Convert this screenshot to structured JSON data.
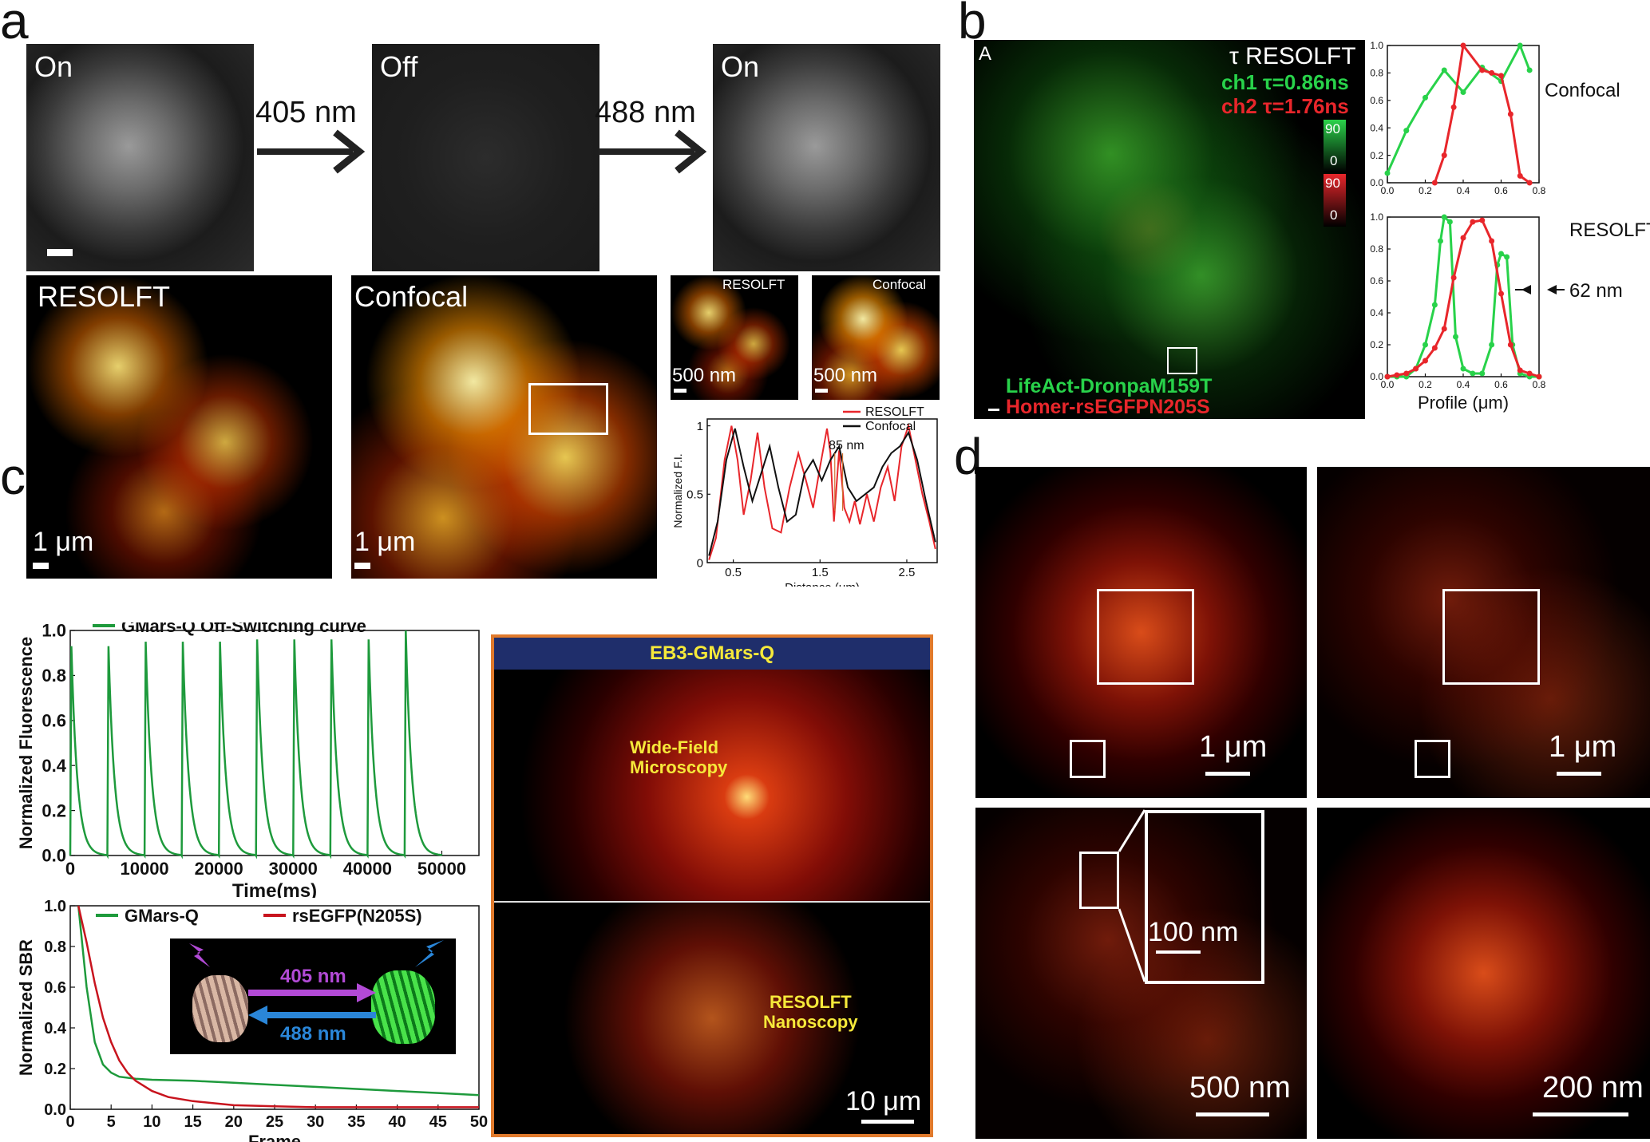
{
  "panel_letters": {
    "a": "a",
    "b": "b",
    "c": "c",
    "d": "d"
  },
  "panel_a": {
    "switching": {
      "on_label_1": "On",
      "off_label": "Off",
      "on_label_2": "On",
      "arrow_1_wavelength": "405 nm",
      "arrow_2_wavelength": "488 nm"
    },
    "resolft_image_label": "RESOLFT",
    "resolft_scale": "1 μm",
    "confocal_image_label": "Confocal",
    "confocal_scale": "1 μm",
    "zoom_resolft_label": "RESOLFT",
    "zoom_resolft_scale": "500 nm",
    "zoom_confocal_label": "Confocal",
    "zoom_confocal_scale": "500 nm"
  },
  "panel_b": {
    "corner_label": "A",
    "title": "τ RESOLFT",
    "ch1": "ch1 τ=0.86ns",
    "ch2": "ch2 τ=1.76ns",
    "green_scale_max": "90",
    "green_scale_min": "0",
    "red_scale_max": "90",
    "red_scale_min": "0",
    "marker_green": "LifeAct-DronpaM159T",
    "marker_red": "Homer-rsEGFPN205S"
  },
  "panel_c": {
    "image_title": "EB3-GMars-Q",
    "wide_field_label_1": "Wide-Field",
    "wide_field_label_2": "Microscopy",
    "resolft_label_1": "RESOLFT",
    "resolft_label_2": "Nanoscopy",
    "image_scale": "10 μm",
    "inset_arrow_1": "405 nm",
    "inset_arrow_2": "488 nm"
  },
  "panel_d": {
    "scale_1": "1 μm",
    "scale_2": "1 μm",
    "scale_3_inset": "100 nm",
    "scale_3": "500 nm",
    "scale_4": "200 nm"
  },
  "colors": {
    "resolft_red": "#e8262b",
    "confocal_black": "#111111",
    "green": "#28d24a",
    "red": "#e8262b",
    "gmars_green": "#1e9a3c",
    "rsegfp_red": "#c8141e",
    "c_title_bg": "#1f2e6b",
    "c_title_text": "#f6e93a",
    "c_frame": "#e07a2c",
    "purple_arrow": "#b24ad6",
    "blue_arrow": "#2a86d8"
  },
  "chart_data": [
    {
      "id": "a_profile",
      "type": "line",
      "ylabel": "Normalized F.I.",
      "xlabel": "Distance (μm)",
      "xlim": [
        0.2,
        2.85
      ],
      "ylim": [
        0,
        1.05
      ],
      "xticks": [
        0.5,
        1.5,
        2.5
      ],
      "yticks": [
        0,
        0.5,
        1
      ],
      "annotation": "85 nm",
      "legend_position": "top-right",
      "series": [
        {
          "name": "RESOLFT",
          "color": "#e8262b",
          "x": [
            0.22,
            0.3,
            0.4,
            0.48,
            0.55,
            0.62,
            0.7,
            0.78,
            0.86,
            0.95,
            1.05,
            1.15,
            1.25,
            1.33,
            1.42,
            1.5,
            1.58,
            1.62,
            1.66,
            1.72,
            1.78,
            1.84,
            1.9,
            1.96,
            2.04,
            2.12,
            2.2,
            2.28,
            2.36,
            2.44,
            2.52,
            2.6,
            2.68,
            2.76,
            2.83
          ],
          "y": [
            0.02,
            0.18,
            0.75,
            1.0,
            0.75,
            0.35,
            0.6,
            0.95,
            0.55,
            0.25,
            0.22,
            0.55,
            0.8,
            0.62,
            0.4,
            0.7,
            0.98,
            0.8,
            0.3,
            0.82,
            0.4,
            0.3,
            0.45,
            0.28,
            0.5,
            0.3,
            0.55,
            0.7,
            0.45,
            0.85,
            1.0,
            0.75,
            0.5,
            0.3,
            0.1
          ]
        },
        {
          "name": "Confocal",
          "color": "#111111",
          "x": [
            0.22,
            0.32,
            0.42,
            0.52,
            0.62,
            0.72,
            0.82,
            0.92,
            1.02,
            1.12,
            1.22,
            1.32,
            1.42,
            1.52,
            1.62,
            1.72,
            1.82,
            1.92,
            2.02,
            2.12,
            2.22,
            2.32,
            2.42,
            2.52,
            2.62,
            2.72,
            2.83
          ],
          "y": [
            0.05,
            0.3,
            0.75,
            0.98,
            0.7,
            0.45,
            0.65,
            0.85,
            0.55,
            0.3,
            0.35,
            0.65,
            0.75,
            0.6,
            0.75,
            0.85,
            0.55,
            0.45,
            0.5,
            0.55,
            0.7,
            0.8,
            0.85,
            0.95,
            0.75,
            0.45,
            0.15
          ]
        }
      ]
    },
    {
      "id": "b_confocal",
      "type": "line",
      "title": "Confocal",
      "xlim": [
        0,
        0.8
      ],
      "ylim": [
        0,
        1.0
      ],
      "xticks": [
        0.0,
        0.2,
        0.4,
        0.6,
        0.8
      ],
      "yticks": [
        0.0,
        0.2,
        0.4,
        0.6,
        0.8,
        1.0
      ],
      "series": [
        {
          "color": "#28d24a",
          "x": [
            0.0,
            0.1,
            0.2,
            0.3,
            0.4,
            0.5,
            0.6,
            0.7,
            0.75
          ],
          "y": [
            0.07,
            0.38,
            0.62,
            0.82,
            0.66,
            0.84,
            0.74,
            1.0,
            0.82
          ]
        },
        {
          "color": "#e8262b",
          "x": [
            0.25,
            0.3,
            0.35,
            0.4,
            0.5,
            0.55,
            0.6,
            0.65,
            0.7,
            0.75
          ],
          "y": [
            0.0,
            0.2,
            0.55,
            1.0,
            0.82,
            0.8,
            0.78,
            0.5,
            0.05,
            0.0
          ]
        }
      ]
    },
    {
      "id": "b_resolft",
      "type": "line",
      "title": "RESOLFT",
      "xlabel": "Profile (μm)",
      "xlim": [
        0,
        0.8
      ],
      "ylim": [
        0,
        1.0
      ],
      "xticks": [
        0.0,
        0.2,
        0.4,
        0.6,
        0.8
      ],
      "yticks": [
        0.0,
        0.2,
        0.4,
        0.6,
        0.8,
        1.0
      ],
      "annotation": "62 nm",
      "series": [
        {
          "color": "#28d24a",
          "x": [
            0.0,
            0.05,
            0.1,
            0.15,
            0.2,
            0.25,
            0.28,
            0.3,
            0.33,
            0.36,
            0.4,
            0.45,
            0.5,
            0.55,
            0.58,
            0.6,
            0.63,
            0.66,
            0.7,
            0.75,
            0.8
          ],
          "y": [
            0.0,
            0.0,
            0.0,
            0.05,
            0.2,
            0.45,
            0.85,
            1.0,
            0.97,
            0.25,
            0.05,
            0.02,
            0.02,
            0.2,
            0.7,
            0.77,
            0.75,
            0.2,
            0.02,
            0.0,
            0.0
          ]
        },
        {
          "color": "#e8262b",
          "x": [
            0.0,
            0.05,
            0.1,
            0.15,
            0.2,
            0.25,
            0.3,
            0.35,
            0.4,
            0.45,
            0.5,
            0.55,
            0.6,
            0.65,
            0.7,
            0.75,
            0.8
          ],
          "y": [
            0.0,
            0.01,
            0.02,
            0.05,
            0.1,
            0.18,
            0.3,
            0.62,
            0.87,
            0.97,
            0.98,
            0.85,
            0.52,
            0.2,
            0.04,
            0.02,
            0.0
          ]
        }
      ]
    },
    {
      "id": "c_offswitch",
      "type": "line",
      "ylabel": "Normalized Fluorescence",
      "xlabel": "Time(ms)",
      "xlim": [
        0,
        55000
      ],
      "ylim": [
        0,
        1.0
      ],
      "xticks": [
        0,
        10000,
        20000,
        30000,
        40000,
        50000
      ],
      "yticks": [
        0.0,
        0.2,
        0.4,
        0.6,
        0.8,
        1.0
      ],
      "legend_position": "top-left",
      "series": [
        {
          "name": "GMars-Q Off-Switching curve",
          "color": "#1e9a3c",
          "pulse_starts": [
            0,
            5000,
            10000,
            15000,
            20000,
            25000,
            30000,
            35000,
            40000,
            45000
          ],
          "peaks": [
            0.93,
            0.93,
            0.95,
            0.95,
            0.95,
            0.96,
            0.96,
            0.96,
            0.96,
            1.0
          ],
          "decay_tau_ms": 800,
          "end_x": 50000
        }
      ]
    },
    {
      "id": "c_sbr",
      "type": "line",
      "ylabel": "Normalized SBR",
      "xlabel": "Frame",
      "xlim": [
        0,
        50
      ],
      "ylim": [
        0,
        1.0
      ],
      "xticks": [
        0,
        5,
        10,
        15,
        20,
        25,
        30,
        35,
        40,
        45,
        50
      ],
      "yticks": [
        0.0,
        0.2,
        0.4,
        0.6,
        0.8,
        1.0
      ],
      "legend_position": "top",
      "series": [
        {
          "name": "GMars-Q",
          "color": "#1e9a3c",
          "x": [
            1,
            2,
            3,
            4,
            5,
            6,
            8,
            10,
            15,
            20,
            25,
            30,
            35,
            40,
            45,
            50
          ],
          "y": [
            1.0,
            0.6,
            0.33,
            0.22,
            0.18,
            0.16,
            0.15,
            0.145,
            0.14,
            0.13,
            0.12,
            0.11,
            0.1,
            0.09,
            0.08,
            0.07
          ]
        },
        {
          "name": "rsEGFP(N205S)",
          "color": "#c8141e",
          "x": [
            1,
            2,
            3,
            4,
            5,
            6,
            7,
            8,
            10,
            12,
            15,
            20,
            25,
            30,
            40,
            50
          ],
          "y": [
            1.0,
            0.82,
            0.62,
            0.45,
            0.33,
            0.24,
            0.18,
            0.14,
            0.09,
            0.06,
            0.04,
            0.02,
            0.015,
            0.01,
            0.01,
            0.01
          ]
        }
      ]
    }
  ]
}
